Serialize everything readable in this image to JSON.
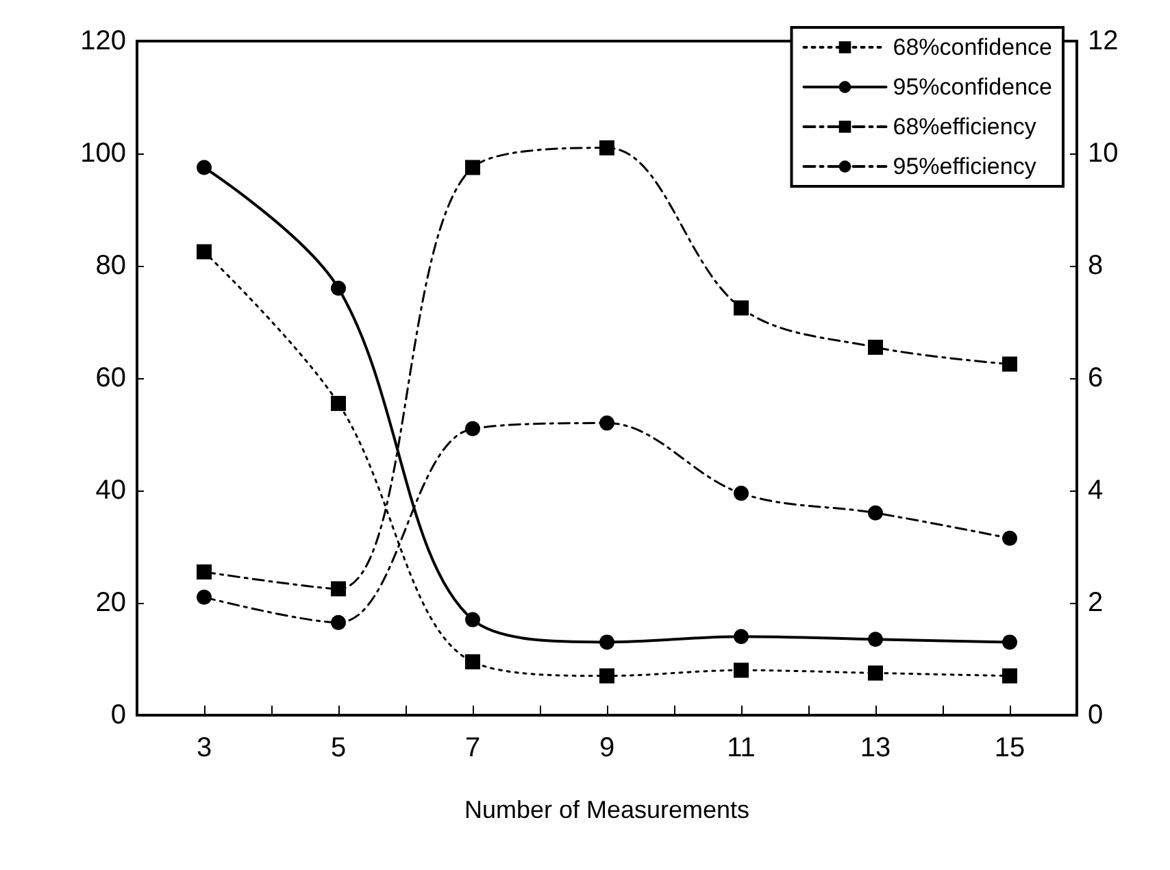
{
  "chart_data": {
    "type": "line",
    "xlabel": "Number of Measurements",
    "xlim": [
      2,
      16
    ],
    "xticks": [
      {
        "value": 2,
        "label": null
      },
      3,
      {
        "value": 4,
        "label": null
      },
      5,
      {
        "value": 6,
        "label": null
      },
      7,
      {
        "value": 8,
        "label": null
      },
      9,
      {
        "value": 10,
        "label": null
      },
      11,
      {
        "value": 12,
        "label": null
      },
      13,
      {
        "value": 14,
        "label": null
      },
      15,
      {
        "value": 16,
        "label": null
      }
    ],
    "ylim": [
      0,
      120
    ],
    "yticks": [
      0,
      20,
      40,
      60,
      80,
      100,
      120
    ],
    "y2lim": [
      0,
      12
    ],
    "y2ticks": [
      0,
      2,
      4,
      6,
      8,
      10,
      12
    ],
    "x": [
      3,
      5,
      7,
      9,
      11,
      13,
      15
    ],
    "series": [
      {
        "name": "68%confidence",
        "color": "#000000",
        "marker": "square",
        "line_style": "dotted",
        "values": [
          82.5,
          55.5,
          9.5,
          7,
          8,
          7.5,
          7
        ]
      },
      {
        "name": "95%confidence",
        "color": "#000000",
        "marker": "circle",
        "line_style": "solid",
        "values": [
          97.5,
          76,
          17,
          13,
          14,
          13.5,
          13
        ]
      },
      {
        "name": "68%efficiency",
        "color": "#000000",
        "marker": "square",
        "line_style": "dashed",
        "axis": "y2",
        "values": [
          2.55,
          2.25,
          9.75,
          10.1,
          7.25,
          6.55,
          6.25
        ]
      },
      {
        "name": "95%efficiency",
        "color": "#000000",
        "marker": "circle",
        "line_style": "dashed",
        "axis": "y2",
        "values": [
          2.1,
          1.65,
          5.1,
          5.2,
          3.95,
          3.6,
          3.15
        ]
      }
    ],
    "grid": false,
    "legend": "top right"
  }
}
